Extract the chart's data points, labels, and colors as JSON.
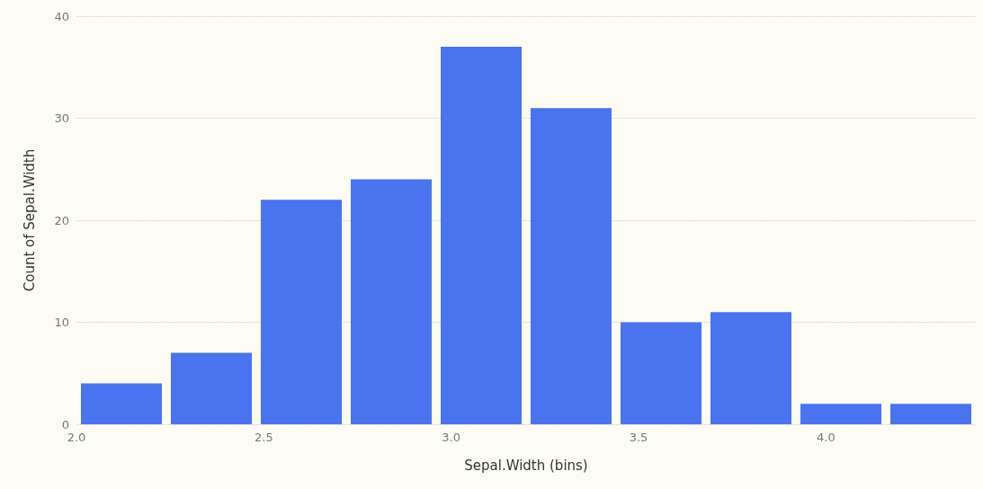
{
  "chart_data": {
    "type": "histogram",
    "xlabel": "Sepal.Width (bins)",
    "ylabel": "Count of Sepal.Width",
    "bins": [
      2.0,
      2.24,
      2.48,
      2.72,
      2.96,
      3.2,
      3.44,
      3.68,
      3.92,
      4.16,
      4.4
    ],
    "values": [
      4,
      7,
      22,
      24,
      37,
      31,
      10,
      11,
      2,
      2
    ],
    "color": "#4a73f0",
    "xlim": [
      2.0,
      4.4
    ],
    "xticks": [
      {
        "value": 2.0,
        "label": "2.0"
      },
      {
        "value": 2.5,
        "label": "2.5"
      },
      {
        "value": 3.0,
        "label": "3.0"
      },
      {
        "value": 3.5,
        "label": "3.5"
      },
      {
        "value": 4.0,
        "label": "4.0"
      }
    ],
    "ylim": [
      0,
      40
    ],
    "yticks": [
      0,
      10,
      20,
      30,
      40
    ],
    "grid": "y"
  }
}
